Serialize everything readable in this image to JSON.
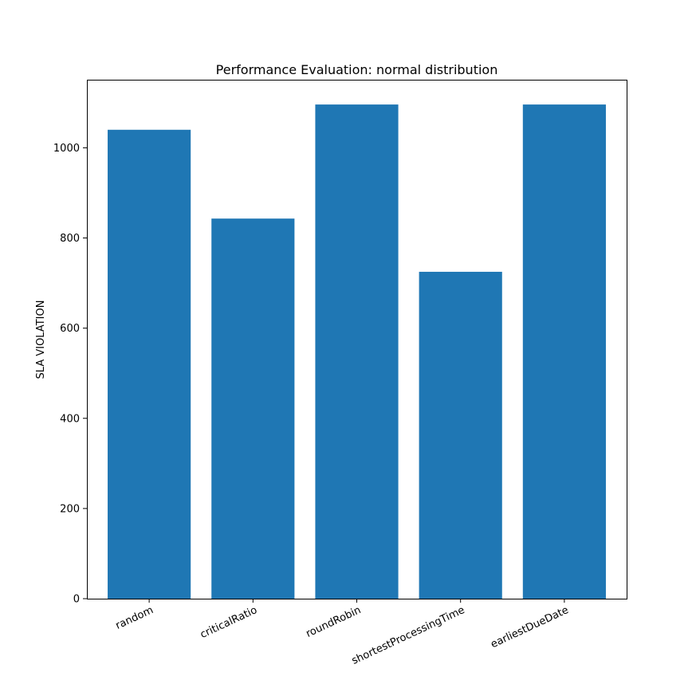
{
  "chart_data": {
    "type": "bar",
    "title": "Performance Evaluation: normal distribution",
    "xlabel": "",
    "ylabel": "SLA VIOLATION",
    "categories": [
      "random",
      "criticalRatio",
      "roundRobin",
      "shortestProcessingTime",
      "earliestDueDate"
    ],
    "values": [
      1040,
      843,
      1096,
      725,
      1096
    ],
    "ylim": [
      0,
      1151
    ],
    "yticks": [
      0,
      200,
      400,
      600,
      800,
      1000
    ],
    "ytick_labels": [
      "0",
      "200",
      "400",
      "600",
      "800",
      "1000"
    ],
    "grid": false,
    "legend": "none",
    "bar_color": "#1f77b4",
    "x_tick_rotation_deg": 25
  }
}
